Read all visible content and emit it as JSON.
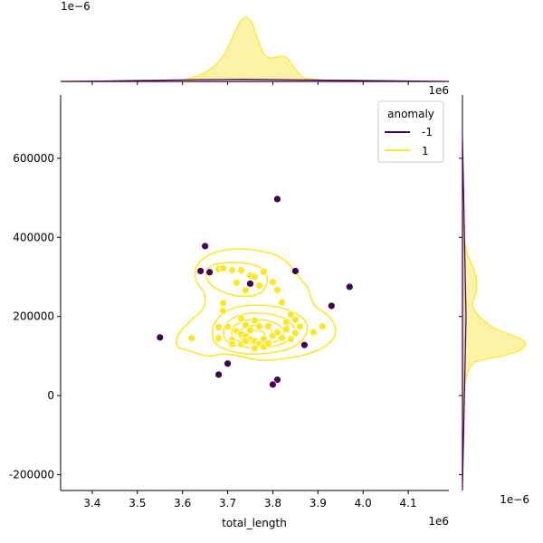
{
  "chart_data": {
    "type": "scatter",
    "title": "",
    "xlabel": "total_length",
    "ylabel": "",
    "x_offset_text": "1e6",
    "y_offset_text": "1e6",
    "top_marginal_offset_text": "1e−6",
    "right_marginal_offset_text": "1e−6",
    "xlim": [
      3.33,
      4.19
    ],
    "ylim": [
      -240000,
      760000
    ],
    "x_ticks": [
      3.4,
      3.5,
      3.6,
      3.7,
      3.8,
      3.9,
      4.0,
      4.1
    ],
    "y_ticks": [
      -200000,
      0,
      200000,
      400000,
      600000
    ],
    "grid": false,
    "legend": {
      "title": "anomaly",
      "placement": "top-right",
      "entries": [
        {
          "label": "-1",
          "color": "#440154"
        },
        {
          "label": "1",
          "color": "#fde725"
        }
      ]
    },
    "colors": {
      "anomaly": "#440154",
      "normal": "#fde725",
      "fill": "#fdf3a6"
    },
    "series": [
      {
        "name": "-1",
        "points": [
          [
            3.81,
            497000
          ],
          [
            3.65,
            378000
          ],
          [
            3.64,
            315000
          ],
          [
            3.66,
            312000
          ],
          [
            3.85,
            315000
          ],
          [
            3.75,
            283000
          ],
          [
            3.97,
            275000
          ],
          [
            3.93,
            227000
          ],
          [
            3.55,
            147000
          ],
          [
            3.87,
            128000
          ],
          [
            3.7,
            81000
          ],
          [
            3.68,
            53000
          ],
          [
            3.81,
            40000
          ],
          [
            3.8,
            28000
          ]
        ]
      },
      {
        "name": "1",
        "points": [
          [
            3.68,
            320000
          ],
          [
            3.69,
            322000
          ],
          [
            3.71,
            317000
          ],
          [
            3.73,
            317000
          ],
          [
            3.75,
            304000
          ],
          [
            3.76,
            300000
          ],
          [
            3.78,
            313000
          ],
          [
            3.8,
            287000
          ],
          [
            3.72,
            285000
          ],
          [
            3.74,
            266000
          ],
          [
            3.75,
            282000
          ],
          [
            3.77,
            278000
          ],
          [
            3.81,
            267000
          ],
          [
            3.69,
            234000
          ],
          [
            3.69,
            214000
          ],
          [
            3.82,
            236000
          ],
          [
            3.84,
            205000
          ],
          [
            3.85,
            192000
          ],
          [
            3.73,
            195000
          ],
          [
            3.76,
            190000
          ],
          [
            3.74,
            178000
          ],
          [
            3.75,
            165000
          ],
          [
            3.77,
            175000
          ],
          [
            3.79,
            175000
          ],
          [
            3.68,
            173000
          ],
          [
            3.7,
            174000
          ],
          [
            3.72,
            163000
          ],
          [
            3.73,
            155000
          ],
          [
            3.74,
            150000
          ],
          [
            3.75,
            142000
          ],
          [
            3.76,
            138000
          ],
          [
            3.77,
            130000
          ],
          [
            3.78,
            143000
          ],
          [
            3.8,
            152000
          ],
          [
            3.81,
            160000
          ],
          [
            3.83,
            168000
          ],
          [
            3.83,
            186000
          ],
          [
            3.85,
            158000
          ],
          [
            3.82,
            146000
          ],
          [
            3.84,
            143000
          ],
          [
            3.71,
            141000
          ],
          [
            3.71,
            130000
          ],
          [
            3.73,
            130000
          ],
          [
            3.76,
            120000
          ],
          [
            3.78,
            123000
          ],
          [
            3.79,
            132000
          ],
          [
            3.68,
            145000
          ],
          [
            3.62,
            145000
          ],
          [
            3.89,
            160000
          ],
          [
            3.91,
            175000
          ],
          [
            3.86,
            175000
          ],
          [
            3.74,
            138000
          ]
        ]
      }
    ]
  }
}
